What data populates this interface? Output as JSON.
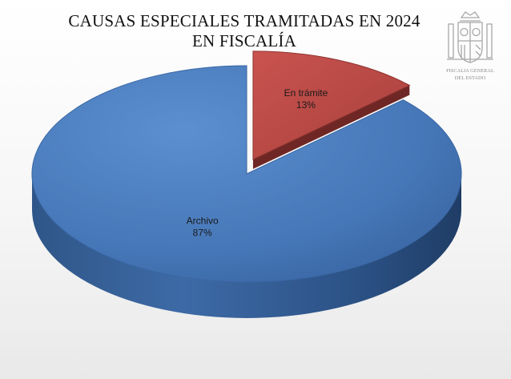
{
  "chart_data": {
    "type": "pie",
    "title_lines": [
      "CAUSAS ESPECIALES TRAMITADAS EN 2024",
      "EN FISCALÍA"
    ],
    "slices": [
      {
        "label": "En trámite",
        "percent_label": "13%",
        "value": 13,
        "color": "#c0504d"
      },
      {
        "label": "Archivo",
        "percent_label": "87%",
        "value": 87,
        "color": "#4f81bd"
      }
    ],
    "three_d": true,
    "exploded_slice": "En trámite",
    "legend": "none"
  },
  "logo": {
    "text_line1": "FISCALIA GENERAL",
    "text_line2": "DEL ESTADO"
  }
}
